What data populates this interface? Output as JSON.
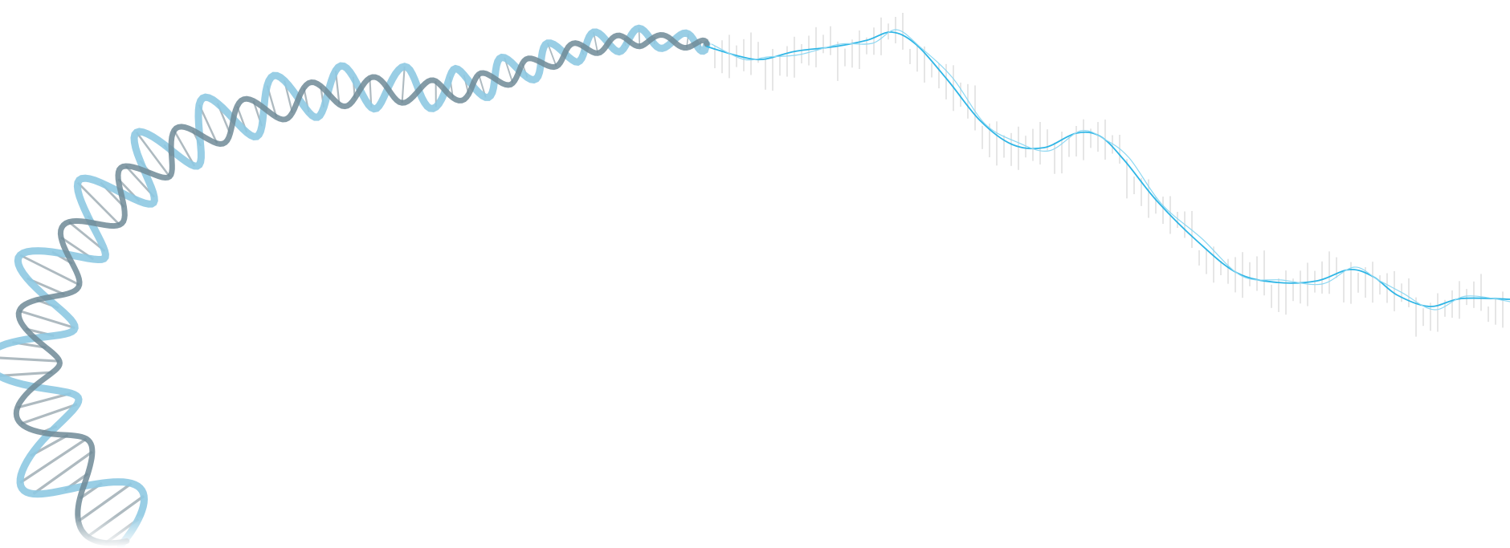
{
  "image": {
    "subject": "dna-helix-to-line-chart",
    "colors": {
      "background": "#ffffff",
      "strand_dark": "#6f8996",
      "strand_light": "#8ec9e2",
      "rung": "#9aa9b1",
      "chart_line": "#2fb6e6",
      "chart_line_light": "#8fd8f2",
      "candles": "#e6e6e6"
    }
  }
}
